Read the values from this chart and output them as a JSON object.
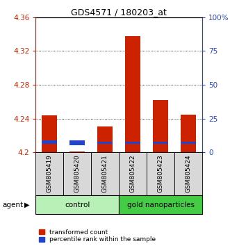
{
  "title": "GDS4571 / 180203_at",
  "samples": [
    "GSM805419",
    "GSM805420",
    "GSM805421",
    "GSM805422",
    "GSM805423",
    "GSM805424"
  ],
  "red_values": [
    4.244,
    4.201,
    4.231,
    4.338,
    4.262,
    4.245
  ],
  "red_base": 4.2,
  "blue_bot": [
    4.21,
    4.209,
    4.21,
    4.21,
    4.21,
    4.21
  ],
  "blue_top": [
    4.214,
    4.214,
    4.213,
    4.213,
    4.213,
    4.213
  ],
  "ylim_min": 4.2,
  "ylim_max": 4.36,
  "yticks_left": [
    4.2,
    4.24,
    4.28,
    4.32,
    4.36
  ],
  "yticks_right": [
    0,
    25,
    50,
    75,
    100
  ],
  "groups": [
    {
      "label": "control",
      "indices": [
        0,
        1,
        2
      ],
      "color": "#b8f0b8"
    },
    {
      "label": "gold nanoparticles",
      "indices": [
        3,
        4,
        5
      ],
      "color": "#44cc44"
    }
  ],
  "legend_red": "transformed count",
  "legend_blue": "percentile rank within the sample",
  "bar_width": 0.55,
  "red_color": "#cc2200",
  "blue_color": "#2244cc",
  "sample_bg_color": "#d8d8d8",
  "plot_bg": "#ffffff",
  "left_axis_color": "#cc2200",
  "right_axis_color": "#2244cc"
}
